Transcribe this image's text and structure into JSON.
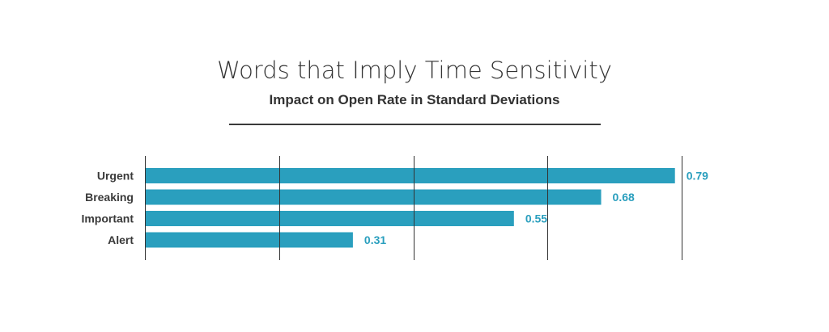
{
  "chart_data": {
    "type": "bar",
    "orientation": "horizontal",
    "title": "Words that Imply Time Sensitivity",
    "subtitle": "Impact on Open Rate in Standard Deviations",
    "categories": [
      "Urgent",
      "Breaking",
      "Important",
      "Alert"
    ],
    "values": [
      0.79,
      0.68,
      0.55,
      0.31
    ],
    "value_labels": [
      "0.79",
      "0.68",
      "0.55",
      "0.31"
    ],
    "xlim": [
      0,
      0.8
    ],
    "gridlines": [
      0,
      0.2,
      0.4,
      0.6,
      0.8
    ],
    "grid": true,
    "legend": "none",
    "colors": {
      "bar": "#2a9fbe",
      "value_label": "#2a9fbe",
      "text": "#333333",
      "grid": "#333333"
    }
  }
}
